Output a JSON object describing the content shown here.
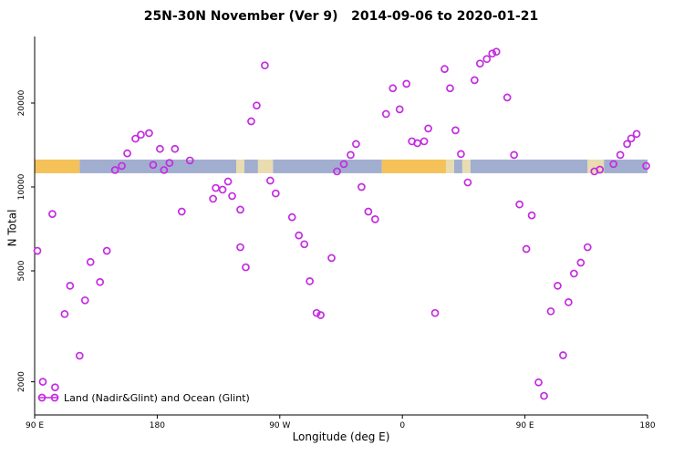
{
  "title": "25N-30N November (Ver 9)   2014-09-06 to 2020-01-21",
  "chart_data": {
    "type": "scatter",
    "title": "25N-30N November (Ver 9)   2014-09-06 to 2020-01-21",
    "xlabel": "Longitude (deg E)",
    "ylabel": "N Total",
    "y_scale": "log10",
    "xlim": [
      90,
      540
    ],
    "ylim": [
      1500,
      35000
    ],
    "x_axis": {
      "lim": [
        90,
        540
      ],
      "ticks": [
        {
          "pos": 90,
          "label": "90 E"
        },
        {
          "pos": 180,
          "label": "180"
        },
        {
          "pos": 270,
          "label": "90 W"
        },
        {
          "pos": 360,
          "label": "0"
        },
        {
          "pos": 450,
          "label": "90 E"
        },
        {
          "pos": 540,
          "label": "180"
        }
      ]
    },
    "y_axis": {
      "ticks": [
        {
          "value": 2000,
          "label": "2000"
        },
        {
          "value": 5000,
          "label": "5000"
        },
        {
          "value": 10000,
          "label": "10000"
        },
        {
          "value": 20000,
          "label": "20000"
        }
      ]
    },
    "marker": {
      "shape": "open-circle",
      "color": "#c42be0"
    },
    "band": {
      "n_top": 12540,
      "n_bottom": 11200,
      "colors": {
        "land": "#f5c159",
        "ocean": "#a2aed0",
        "land_light": "#e9dcb0"
      },
      "segments": [
        {
          "from": 90,
          "to": 123,
          "type": "land"
        },
        {
          "from": 123,
          "to": 238,
          "type": "ocean"
        },
        {
          "from": 238,
          "to": 244,
          "type": "land_light"
        },
        {
          "from": 244,
          "to": 254,
          "type": "ocean"
        },
        {
          "from": 254,
          "to": 265,
          "type": "land_light"
        },
        {
          "from": 265,
          "to": 345,
          "type": "ocean"
        },
        {
          "from": 345,
          "to": 392,
          "type": "land"
        },
        {
          "from": 392,
          "to": 398,
          "type": "land_light"
        },
        {
          "from": 398,
          "to": 404,
          "type": "ocean"
        },
        {
          "from": 404,
          "to": 410,
          "type": "land_light"
        },
        {
          "from": 410,
          "to": 496,
          "type": "ocean"
        },
        {
          "from": 496,
          "to": 508,
          "type": "land_light"
        },
        {
          "from": 508,
          "to": 540,
          "type": "ocean"
        }
      ]
    },
    "legend": {
      "label": "Land (Nadir&Glint) and Ocean (Glint)"
    },
    "points": [
      {
        "lon": 92,
        "n": 5900
      },
      {
        "lon": 96,
        "n": 2000
      },
      {
        "lon": 103,
        "n": 8000
      },
      {
        "lon": 105,
        "n": 1910
      },
      {
        "lon": 112,
        "n": 3500
      },
      {
        "lon": 116,
        "n": 4420
      },
      {
        "lon": 123,
        "n": 2480
      },
      {
        "lon": 127,
        "n": 3920
      },
      {
        "lon": 131,
        "n": 5380
      },
      {
        "lon": 138,
        "n": 4560
      },
      {
        "lon": 143,
        "n": 5900
      },
      {
        "lon": 149,
        "n": 11500
      },
      {
        "lon": 154,
        "n": 11900
      },
      {
        "lon": 158,
        "n": 13200
      },
      {
        "lon": 164,
        "n": 14900
      },
      {
        "lon": 168,
        "n": 15400
      },
      {
        "lon": 174,
        "n": 15600
      },
      {
        "lon": 177,
        "n": 12000
      },
      {
        "lon": 182,
        "n": 13700
      },
      {
        "lon": 185,
        "n": 11500
      },
      {
        "lon": 189,
        "n": 12200
      },
      {
        "lon": 193,
        "n": 13700
      },
      {
        "lon": 198,
        "n": 8160
      },
      {
        "lon": 204,
        "n": 12450
      },
      {
        "lon": 221,
        "n": 9070
      },
      {
        "lon": 223,
        "n": 9920
      },
      {
        "lon": 228,
        "n": 9780
      },
      {
        "lon": 232,
        "n": 10460
      },
      {
        "lon": 235,
        "n": 9280
      },
      {
        "lon": 241,
        "n": 8290
      },
      {
        "lon": 241,
        "n": 6080
      },
      {
        "lon": 245,
        "n": 5150
      },
      {
        "lon": 249,
        "n": 17200
      },
      {
        "lon": 253,
        "n": 19600
      },
      {
        "lon": 259,
        "n": 27300
      },
      {
        "lon": 263,
        "n": 10540
      },
      {
        "lon": 267,
        "n": 9480
      },
      {
        "lon": 279,
        "n": 7790
      },
      {
        "lon": 284,
        "n": 6700
      },
      {
        "lon": 288,
        "n": 6230
      },
      {
        "lon": 292,
        "n": 4590
      },
      {
        "lon": 297,
        "n": 3530
      },
      {
        "lon": 300,
        "n": 3470
      },
      {
        "lon": 308,
        "n": 5560
      },
      {
        "lon": 312,
        "n": 11370
      },
      {
        "lon": 317,
        "n": 12080
      },
      {
        "lon": 322,
        "n": 13030
      },
      {
        "lon": 326,
        "n": 14260
      },
      {
        "lon": 330,
        "n": 10000
      },
      {
        "lon": 335,
        "n": 8160
      },
      {
        "lon": 340,
        "n": 7660
      },
      {
        "lon": 348,
        "n": 18280
      },
      {
        "lon": 353,
        "n": 22600
      },
      {
        "lon": 358,
        "n": 18990
      },
      {
        "lon": 363,
        "n": 23450
      },
      {
        "lon": 367,
        "n": 14580
      },
      {
        "lon": 371,
        "n": 14360
      },
      {
        "lon": 376,
        "n": 14580
      },
      {
        "lon": 379,
        "n": 16210
      },
      {
        "lon": 384,
        "n": 3530
      },
      {
        "lon": 391,
        "n": 26500
      },
      {
        "lon": 395,
        "n": 22600
      },
      {
        "lon": 399,
        "n": 15970
      },
      {
        "lon": 403,
        "n": 13130
      },
      {
        "lon": 408,
        "n": 10380
      },
      {
        "lon": 413,
        "n": 24170
      },
      {
        "lon": 417,
        "n": 27720
      },
      {
        "lon": 422,
        "n": 28780
      },
      {
        "lon": 426,
        "n": 30110
      },
      {
        "lon": 429,
        "n": 30570
      },
      {
        "lon": 437,
        "n": 20940
      },
      {
        "lon": 442,
        "n": 13030
      },
      {
        "lon": 446,
        "n": 8660
      },
      {
        "lon": 451,
        "n": 5990
      },
      {
        "lon": 455,
        "n": 7910
      },
      {
        "lon": 460,
        "n": 1990
      },
      {
        "lon": 464,
        "n": 1780
      },
      {
        "lon": 469,
        "n": 3580
      },
      {
        "lon": 474,
        "n": 4420
      },
      {
        "lon": 478,
        "n": 2490
      },
      {
        "lon": 482,
        "n": 3860
      },
      {
        "lon": 486,
        "n": 4890
      },
      {
        "lon": 491,
        "n": 5350
      },
      {
        "lon": 496,
        "n": 6080
      },
      {
        "lon": 501,
        "n": 11370
      },
      {
        "lon": 505,
        "n": 11540
      },
      {
        "lon": 515,
        "n": 12080
      },
      {
        "lon": 520,
        "n": 13030
      },
      {
        "lon": 525,
        "n": 14260
      },
      {
        "lon": 528,
        "n": 14930
      },
      {
        "lon": 532,
        "n": 15500
      },
      {
        "lon": 539,
        "n": 11900
      }
    ]
  }
}
